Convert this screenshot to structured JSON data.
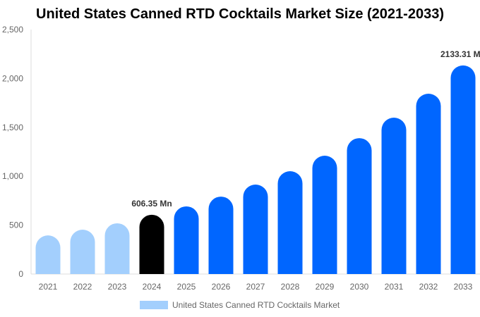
{
  "chart_data": {
    "type": "bar",
    "title": "United States Canned RTD Cocktails Market Size (2021-2033)",
    "categories": [
      "2021",
      "2022",
      "2023",
      "2024",
      "2025",
      "2026",
      "2027",
      "2028",
      "2029",
      "2030",
      "2031",
      "2032",
      "2033"
    ],
    "series": [
      {
        "name": "United States Canned RTD Cocktails Market",
        "values": [
          395,
          454,
          519,
          606.35,
          692,
          792,
          915,
          1052,
          1210,
          1390,
          1599,
          1844,
          2133.31
        ]
      }
    ],
    "data_labels": [
      {
        "category": "2024",
        "text": "606.35 Mn"
      },
      {
        "category": "2033",
        "text": "2133.31 Mn"
      }
    ],
    "ylim": [
      0,
      2500
    ],
    "yticks": [
      "0",
      "500",
      "1,000",
      "1,500",
      "2,000",
      "2,500"
    ],
    "grid": false,
    "legend": "bottom",
    "colors": {
      "historical": "#a3cffd",
      "base_year": "#000000",
      "forecast": "#0066ff",
      "axis_text": "#666666"
    }
  }
}
